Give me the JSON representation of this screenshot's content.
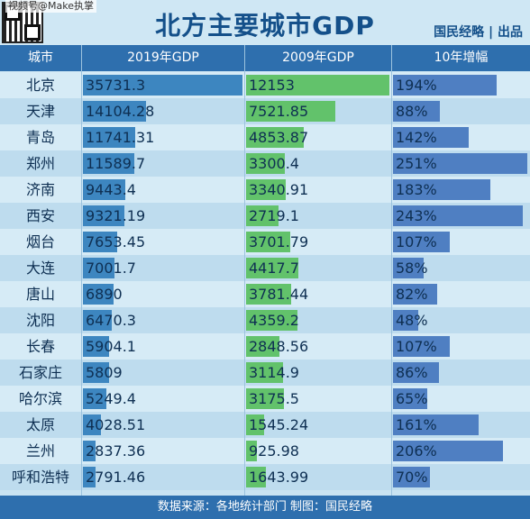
{
  "header": {
    "watermark": "视频号@Make执掌",
    "title": "北方主要城市GDP",
    "brand": "国民经略 | 出品"
  },
  "footer": {
    "text": "数据来源：各地统计部门  制图：国民经略"
  },
  "colors": {
    "title": "#14508a",
    "header_bg": "#2e6fae",
    "bar_2019": "#3d86c0",
    "bar_2009": "#62c26b",
    "bar_growth": "#4f7fc2"
  },
  "chart_data": {
    "type": "table",
    "title": "北方主要城市GDP",
    "columns": [
      "城市",
      "2019年GDP",
      "2009年GDP",
      "10年增幅"
    ],
    "rows": [
      {
        "city": "北京",
        "gdp2019": "35731.3",
        "gdp2009": "12153",
        "growth": "194%"
      },
      {
        "city": "天津",
        "gdp2019": "14104.28",
        "gdp2009": "7521.85",
        "growth": "88%"
      },
      {
        "city": "青岛",
        "gdp2019": "11741.31",
        "gdp2009": "4853.87",
        "growth": "142%"
      },
      {
        "city": "郑州",
        "gdp2019": "11589.7",
        "gdp2009": "3300.4",
        "growth": "251%"
      },
      {
        "city": "济南",
        "gdp2019": "9443.4",
        "gdp2009": "3340.91",
        "growth": "183%"
      },
      {
        "city": "西安",
        "gdp2019": "9321.19",
        "gdp2009": "2719.1",
        "growth": "243%"
      },
      {
        "city": "烟台",
        "gdp2019": "7653.45",
        "gdp2009": "3701.79",
        "growth": "107%"
      },
      {
        "city": "大连",
        "gdp2019": "7001.7",
        "gdp2009": "4417.7",
        "growth": "58%"
      },
      {
        "city": "唐山",
        "gdp2019": "6890",
        "gdp2009": "3781.44",
        "growth": "82%"
      },
      {
        "city": "沈阳",
        "gdp2019": "6470.3",
        "gdp2009": "4359.2",
        "growth": "48%"
      },
      {
        "city": "长春",
        "gdp2019": "5904.1",
        "gdp2009": "2848.56",
        "growth": "107%"
      },
      {
        "city": "石家庄",
        "gdp2019": "5809",
        "gdp2009": "3114.9",
        "growth": "86%"
      },
      {
        "city": "哈尔滨",
        "gdp2019": "5249.4",
        "gdp2009": "3175.5",
        "growth": "65%"
      },
      {
        "city": "太原",
        "gdp2019": "4028.51",
        "gdp2009": "1545.24",
        "growth": "161%"
      },
      {
        "city": "兰州",
        "gdp2019": "2837.36",
        "gdp2009": "925.98",
        "growth": "206%"
      },
      {
        "city": "呼和浩特",
        "gdp2019": "2791.46",
        "gdp2009": "1643.99",
        "growth": "70%"
      }
    ]
  }
}
